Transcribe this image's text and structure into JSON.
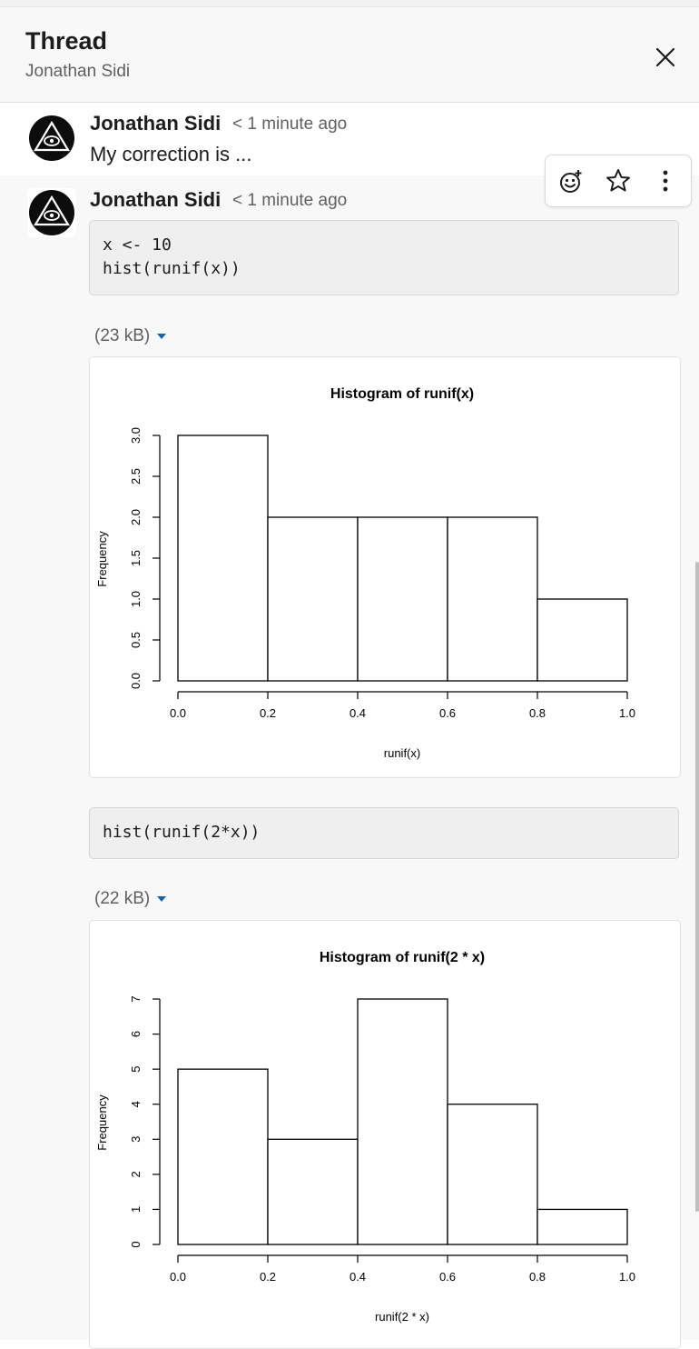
{
  "header": {
    "title": "Thread",
    "subtitle": "Jonathan Sidi"
  },
  "icons": {
    "close": "close-icon",
    "avatar": "triangle-eye-avatar-icon",
    "reaction": "add-reaction-icon",
    "star": "star-icon",
    "more": "more-vertical-icon"
  },
  "messages": [
    {
      "author": "Jonathan Sidi",
      "timestamp": "< 1 minute ago",
      "text": "My correction is ..."
    },
    {
      "author": "Jonathan Sidi",
      "timestamp": "< 1 minute ago",
      "code1": [
        "x <- 10",
        "hist(runif(x))"
      ],
      "file1_size": "(23 kB)",
      "code2": [
        "hist(runif(2*x))"
      ],
      "file2_size": "(22 kB)"
    }
  ],
  "colors": {
    "link_blue": "#1264a3",
    "header_bg": "#f8f8f8"
  },
  "chart_data": [
    {
      "type": "bar",
      "title": "Histogram of runif(x)",
      "xlabel": "runif(x)",
      "ylabel": "Frequency",
      "bins": [
        [
          0.0,
          0.2
        ],
        [
          0.2,
          0.4
        ],
        [
          0.4,
          0.6
        ],
        [
          0.6,
          0.8
        ],
        [
          0.8,
          1.0
        ]
      ],
      "values": [
        3,
        2,
        2,
        2,
        1
      ],
      "xticks": [
        "0.0",
        "0.2",
        "0.4",
        "0.6",
        "0.8",
        "1.0"
      ],
      "yticks": [
        "0.0",
        "0.5",
        "1.0",
        "1.5",
        "2.0",
        "2.5",
        "3.0"
      ],
      "xlim": [
        0,
        1
      ],
      "ylim": [
        0,
        3
      ],
      "grid": false
    },
    {
      "type": "bar",
      "title": "Histogram of runif(2 * x)",
      "xlabel": "runif(2 * x)",
      "ylabel": "Frequency",
      "bins": [
        [
          0.0,
          0.2
        ],
        [
          0.2,
          0.4
        ],
        [
          0.4,
          0.6
        ],
        [
          0.6,
          0.8
        ],
        [
          0.8,
          1.0
        ]
      ],
      "values": [
        5,
        3,
        7,
        4,
        1
      ],
      "xticks": [
        "0.0",
        "0.2",
        "0.4",
        "0.6",
        "0.8",
        "1.0"
      ],
      "yticks": [
        "0",
        "1",
        "2",
        "3",
        "4",
        "5",
        "6",
        "7"
      ],
      "xlim": [
        0,
        1
      ],
      "ylim": [
        0,
        7
      ],
      "grid": false
    }
  ]
}
